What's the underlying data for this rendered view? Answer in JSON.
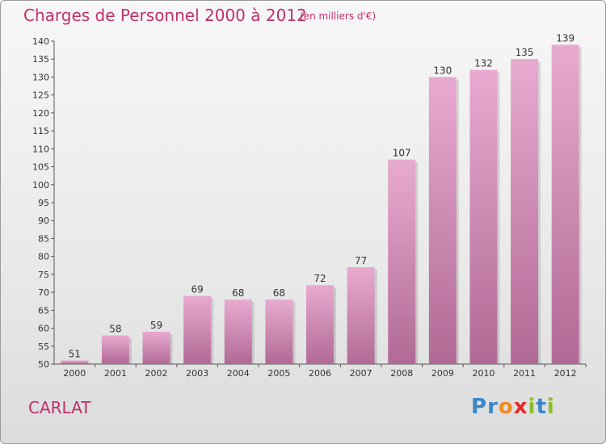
{
  "header": {
    "title": "Charges de Personnel 2000 à 2012",
    "subtitle": "(en milliers d'€)"
  },
  "footer": {
    "commune": "CARLAT",
    "logo_text": "Proxiti"
  },
  "colors": {
    "title": "#c0306a",
    "bar_top": "#e8aad0",
    "bar_bottom": "#b06a95"
  },
  "chart_data": {
    "type": "bar",
    "title": "Charges de Personnel 2000 à 2012",
    "subtitle": "(en milliers d'€)",
    "categories": [
      "2000",
      "2001",
      "2002",
      "2003",
      "2004",
      "2005",
      "2006",
      "2007",
      "2008",
      "2009",
      "2010",
      "2011",
      "2012"
    ],
    "values": [
      51,
      58,
      59,
      69,
      68,
      68,
      72,
      77,
      107,
      130,
      132,
      135,
      139
    ],
    "ylim": [
      50,
      140
    ],
    "ytick_step": 5,
    "grid": false,
    "data_labels": true
  }
}
